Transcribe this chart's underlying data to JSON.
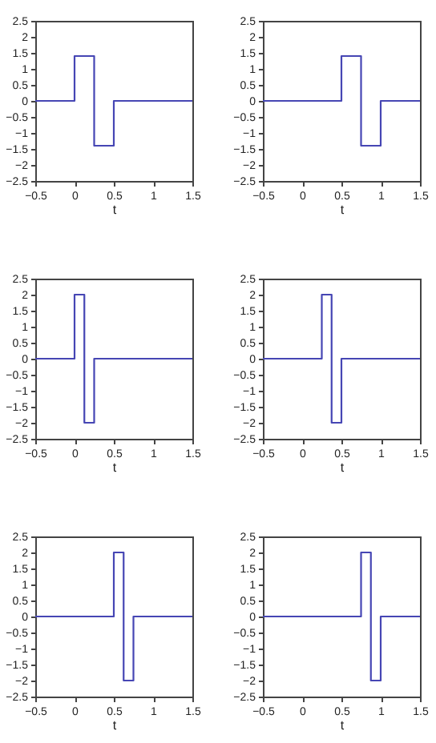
{
  "chart_data": [
    {
      "type": "line",
      "xlabel": "t",
      "x": [
        -0.5,
        0,
        0,
        0.25,
        0.25,
        0.5,
        0.5,
        1.5
      ],
      "series": [
        {
          "color": "#4646b4",
          "values": [
            0,
            0,
            1.4,
            1.4,
            -1.4,
            -1.4,
            0,
            0
          ]
        }
      ],
      "xlim": [
        -0.5,
        1.5
      ],
      "xticks": [
        -0.5,
        0,
        0.5,
        1,
        1.5
      ],
      "ylim": [
        -2.5,
        2.5
      ],
      "yticks": [
        -2.5,
        -2,
        -1.5,
        -1,
        -0.5,
        0,
        0.5,
        1,
        1.5,
        2,
        2.5
      ],
      "grid": false
    },
    {
      "type": "line",
      "xlabel": "t",
      "x": [
        -0.5,
        0.5,
        0.5,
        0.75,
        0.75,
        1,
        1,
        1.5
      ],
      "series": [
        {
          "color": "#4646b4",
          "values": [
            0,
            0,
            1.4,
            1.4,
            -1.4,
            -1.4,
            0,
            0
          ]
        }
      ],
      "xlim": [
        -0.5,
        1.5
      ],
      "xticks": [
        -0.5,
        0,
        0.5,
        1,
        1.5
      ],
      "ylim": [
        -2.5,
        2.5
      ],
      "yticks": [
        -2.5,
        -2,
        -1.5,
        -1,
        -0.5,
        0,
        0.5,
        1,
        1.5,
        2,
        2.5
      ],
      "grid": false
    },
    {
      "type": "line",
      "xlabel": "t",
      "x": [
        -0.5,
        0,
        0,
        0.125,
        0.125,
        0.25,
        0.25,
        1.5
      ],
      "series": [
        {
          "color": "#4646b4",
          "values": [
            0,
            0,
            2,
            2,
            -2,
            -2,
            0,
            0
          ]
        }
      ],
      "xlim": [
        -0.5,
        1.5
      ],
      "xticks": [
        -0.5,
        0,
        0.5,
        1,
        1.5
      ],
      "ylim": [
        -2.5,
        2.5
      ],
      "yticks": [
        -2.5,
        -2,
        -1.5,
        -1,
        -0.5,
        0,
        0.5,
        1,
        1.5,
        2,
        2.5
      ],
      "grid": false
    },
    {
      "type": "line",
      "xlabel": "t",
      "x": [
        -0.5,
        0.25,
        0.25,
        0.375,
        0.375,
        0.5,
        0.5,
        1.5
      ],
      "series": [
        {
          "color": "#4646b4",
          "values": [
            0,
            0,
            2,
            2,
            -2,
            -2,
            0,
            0
          ]
        }
      ],
      "xlim": [
        -0.5,
        1.5
      ],
      "xticks": [
        -0.5,
        0,
        0.5,
        1,
        1.5
      ],
      "ylim": [
        -2.5,
        2.5
      ],
      "yticks": [
        -2.5,
        -2,
        -1.5,
        -1,
        -0.5,
        0,
        0.5,
        1,
        1.5,
        2,
        2.5
      ],
      "grid": false
    },
    {
      "type": "line",
      "xlabel": "t",
      "x": [
        -0.5,
        0.5,
        0.5,
        0.625,
        0.625,
        0.75,
        0.75,
        1.5
      ],
      "series": [
        {
          "color": "#4646b4",
          "values": [
            0,
            0,
            2,
            2,
            -2,
            -2,
            0,
            0
          ]
        }
      ],
      "xlim": [
        -0.5,
        1.5
      ],
      "xticks": [
        -0.5,
        0,
        0.5,
        1,
        1.5
      ],
      "ylim": [
        -2.5,
        2.5
      ],
      "yticks": [
        -2.5,
        -2,
        -1.5,
        -1,
        -0.5,
        0,
        0.5,
        1,
        1.5,
        2,
        2.5
      ],
      "grid": false
    },
    {
      "type": "line",
      "xlabel": "t",
      "x": [
        -0.5,
        0.75,
        0.75,
        0.875,
        0.875,
        1,
        1,
        1.5
      ],
      "series": [
        {
          "color": "#4646b4",
          "values": [
            0,
            0,
            2,
            2,
            -2,
            -2,
            0,
            0
          ]
        }
      ],
      "xlim": [
        -0.5,
        1.5
      ],
      "xticks": [
        -0.5,
        0,
        0.5,
        1,
        1.5
      ],
      "ylim": [
        -2.5,
        2.5
      ],
      "yticks": [
        -2.5,
        -2,
        -1.5,
        -1,
        -0.5,
        0,
        0.5,
        1,
        1.5,
        2,
        2.5
      ],
      "grid": false
    }
  ]
}
